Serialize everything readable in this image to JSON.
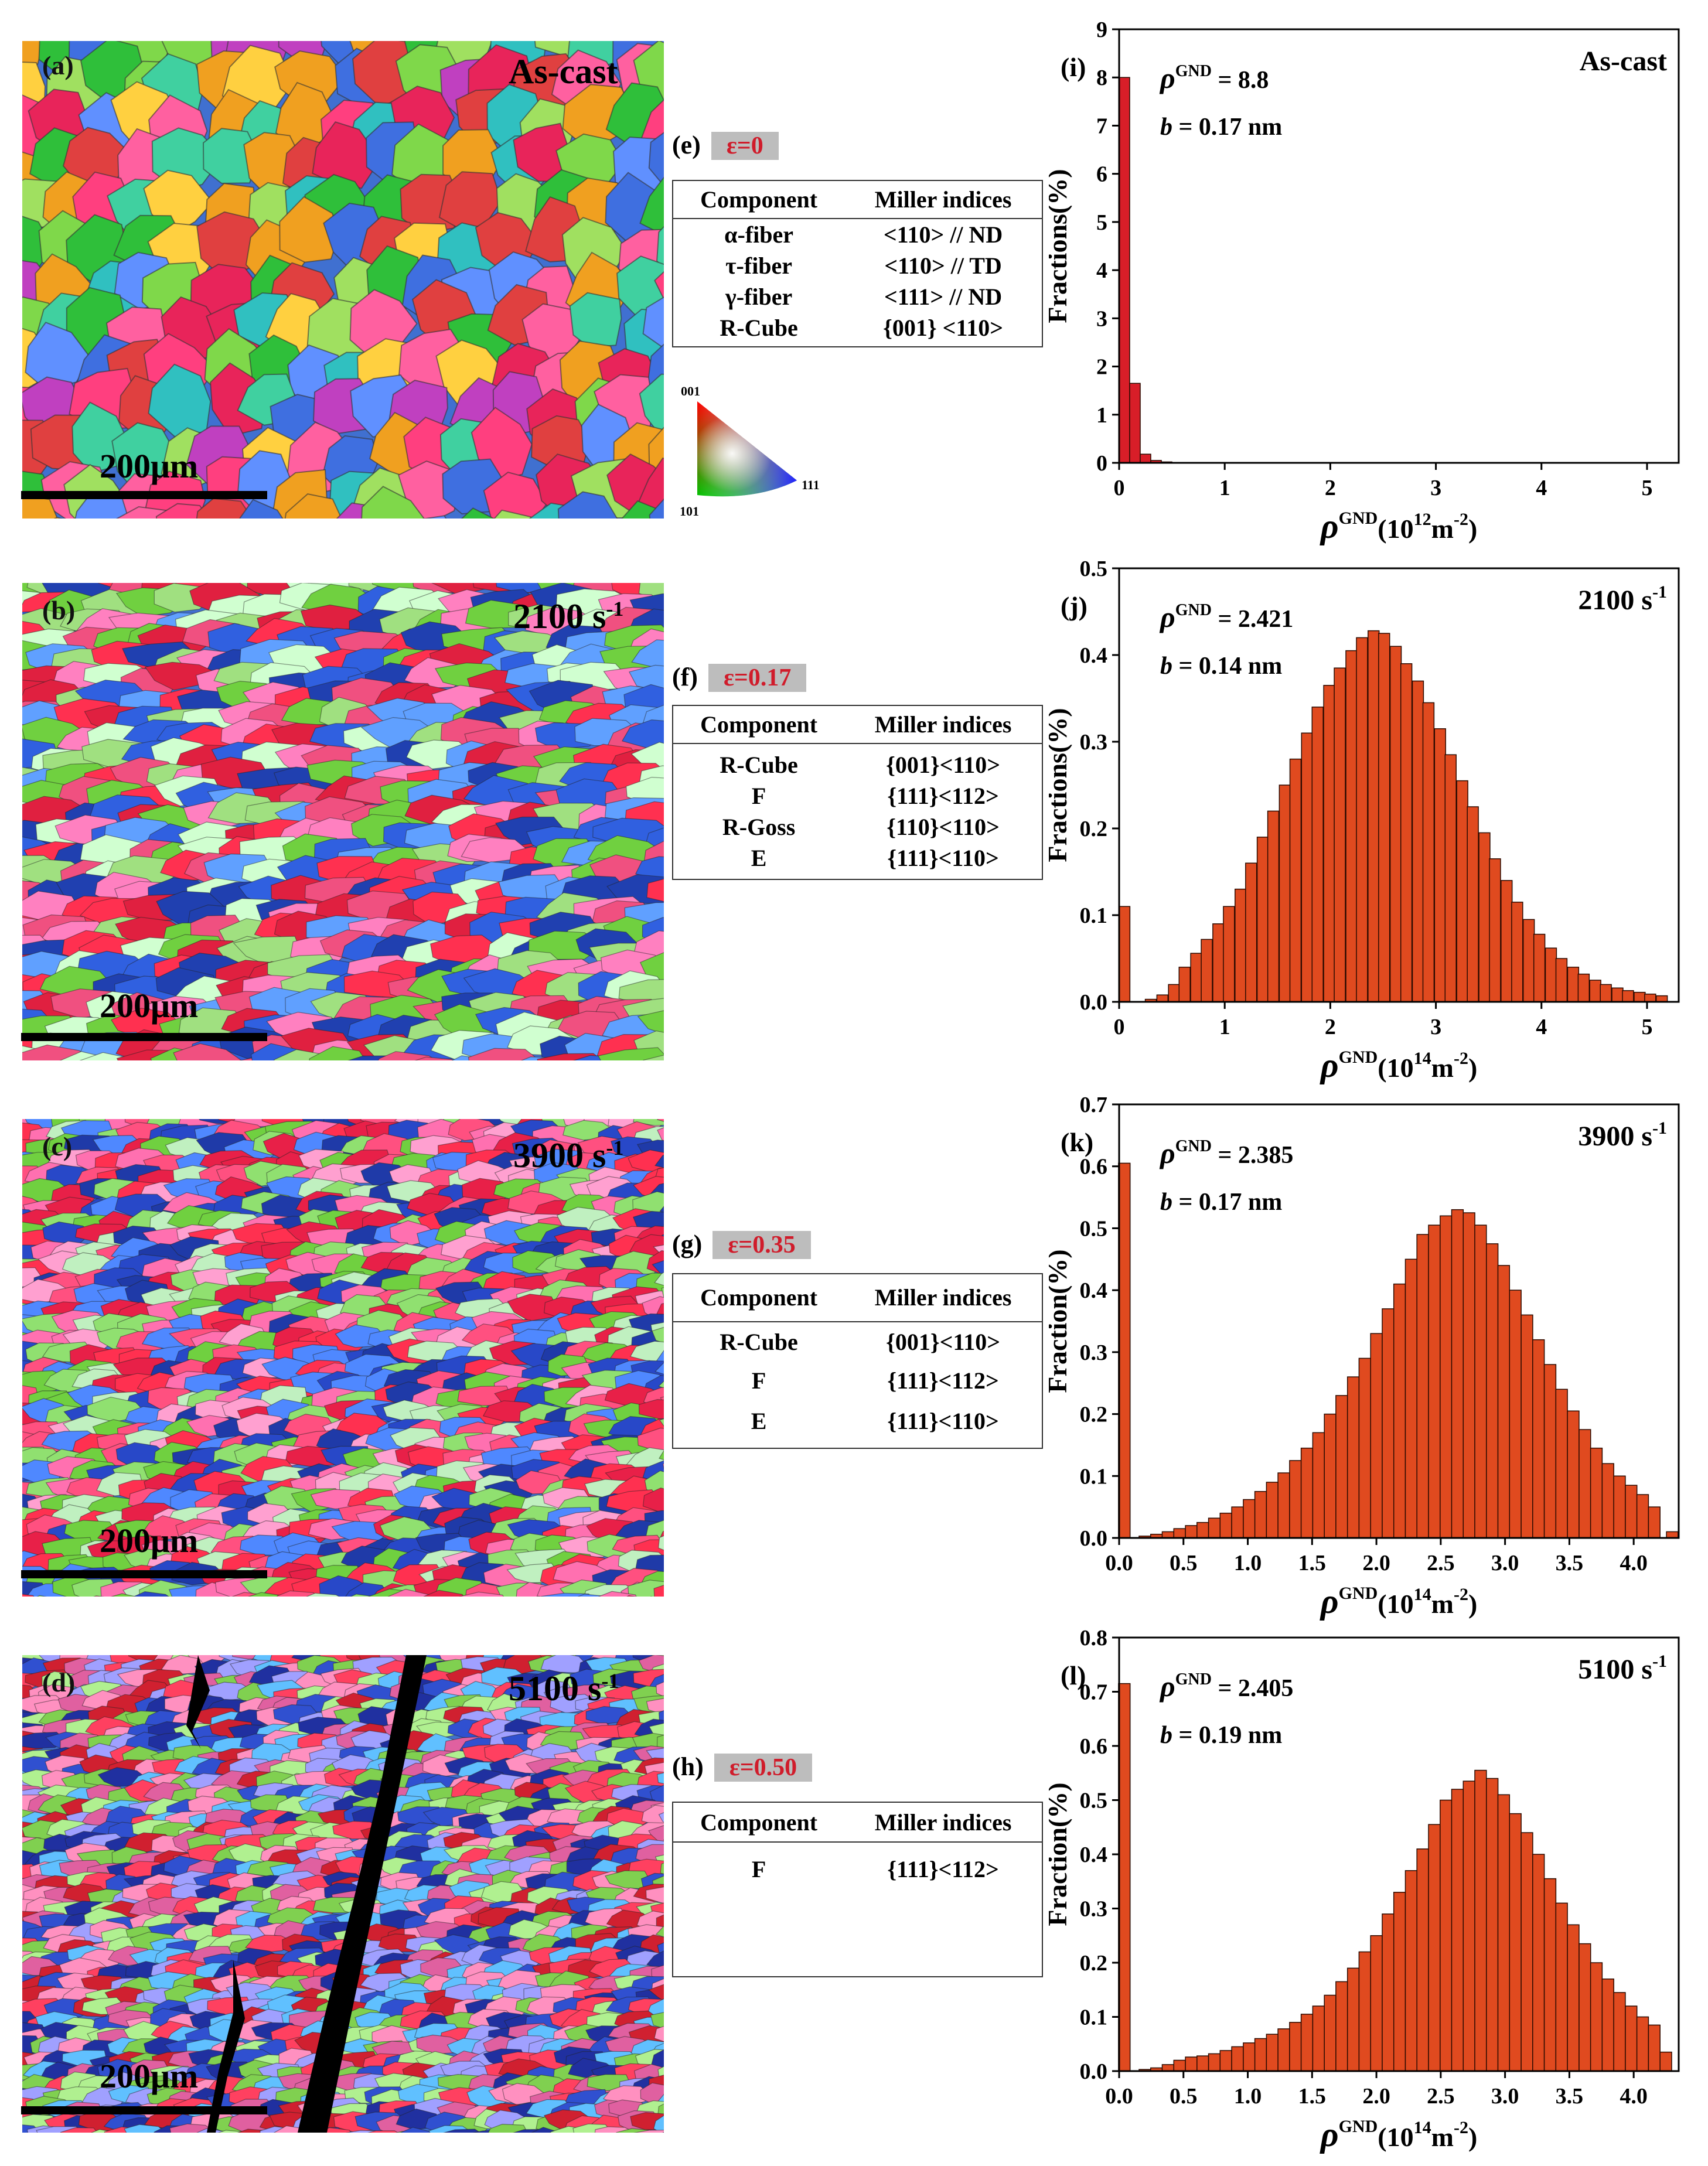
{
  "maps": [
    {
      "label": "(a)",
      "rate": "As-cast",
      "scale": "200μm"
    },
    {
      "label": "(b)",
      "rate": "2100 s-1",
      "scale": "200μm"
    },
    {
      "label": "(c)",
      "rate": "3900 s-1",
      "scale": "200μm"
    },
    {
      "label": "(d)",
      "rate": "5100 s-1",
      "scale": "200μm"
    }
  ],
  "ipf_key": {
    "corner_001": "001",
    "corner_101": "101",
    "corner_111": "111"
  },
  "tables": [
    {
      "label": "(e)",
      "strain": "ε=0",
      "headers": [
        "Component",
        "Miller indices"
      ],
      "rows": [
        [
          "α-fiber",
          "<110> // ND"
        ],
        [
          "τ-fiber",
          "<110> // TD"
        ],
        [
          "γ-fiber",
          "<111> // ND"
        ],
        [
          "R-Cube",
          "{001} <110>"
        ]
      ]
    },
    {
      "label": "(f)",
      "strain": "ε=0.17",
      "headers": [
        "Component",
        "Miller indices"
      ],
      "rows": [
        [
          "R-Cube",
          "{001}<110>"
        ],
        [
          "F",
          "{111}<112>"
        ],
        [
          "R-Goss",
          "{110}<110>"
        ],
        [
          "E",
          "{111}<110>"
        ]
      ]
    },
    {
      "label": "(g)",
      "strain": "ε=0.35",
      "headers": [
        "Component",
        "Miller indices"
      ],
      "rows": [
        [
          "R-Cube",
          "{001}<110>"
        ],
        [
          "F",
          "{111}<112>"
        ],
        [
          "E",
          "{111}<110>"
        ]
      ]
    },
    {
      "label": "(h)",
      "strain": "ε=0.50",
      "headers": [
        "Component",
        "Miller indices"
      ],
      "rows": [
        [
          "F",
          "{111}<112>"
        ]
      ]
    }
  ],
  "colors": {
    "bar_fill": "#e04a1f",
    "bar_fill_i": "#d81e28",
    "strain_text": "#d01c2b",
    "strain_bg": "#bdbdbd"
  },
  "chart_data": [
    {
      "type": "bar",
      "label": "(i)",
      "title": "As-cast",
      "ylabel": "Fractions(%)",
      "xlabel": "ρGND(1012m-2)",
      "annot_rho": "ρGND = 8.8",
      "annot_b": "b = 0.17 nm",
      "xlim": [
        0,
        5.3
      ],
      "ylim": [
        0,
        9
      ],
      "xticks": [
        0,
        1,
        2,
        3,
        4,
        5
      ],
      "xtick_labels": [
        "0",
        "1",
        "2",
        "3",
        "4",
        "5"
      ],
      "yticks": [
        0,
        1,
        2,
        3,
        4,
        5,
        6,
        7,
        8,
        9
      ],
      "ytick_labels": [
        "0",
        "1",
        "2",
        "3",
        "4",
        "5",
        "6",
        "7",
        "8",
        "9"
      ],
      "bin_width": 0.1,
      "x": [
        0.05,
        0.15,
        0.25,
        0.35,
        0.45
      ],
      "values": [
        8.0,
        1.65,
        0.18,
        0.05,
        0.02
      ]
    },
    {
      "type": "bar",
      "label": "(j)",
      "title": "2100 s-1",
      "ylabel": "Fractions(%)",
      "xlabel": "ρGND(1014m-2)",
      "annot_rho": "ρGND = 2.421",
      "annot_b": "b = 0.14 nm",
      "xlim": [
        0,
        5.3
      ],
      "ylim": [
        0,
        0.5
      ],
      "xticks": [
        0,
        1,
        2,
        3,
        4,
        5
      ],
      "xtick_labels": [
        "0",
        "1",
        "2",
        "3",
        "4",
        "5"
      ],
      "yticks": [
        0,
        0.1,
        0.2,
        0.3,
        0.4,
        0.5
      ],
      "ytick_labels": [
        "0.0",
        "0.1",
        "0.2",
        "0.3",
        "0.4",
        "0.5"
      ],
      "bin_width": 0.105,
      "x": [
        0.05,
        0.3,
        0.41,
        0.52,
        0.62,
        0.73,
        0.83,
        0.94,
        1.04,
        1.15,
        1.25,
        1.36,
        1.46,
        1.57,
        1.67,
        1.78,
        1.88,
        1.99,
        2.09,
        2.2,
        2.3,
        2.41,
        2.51,
        2.62,
        2.72,
        2.83,
        2.93,
        3.04,
        3.14,
        3.25,
        3.35,
        3.46,
        3.56,
        3.67,
        3.77,
        3.88,
        3.98,
        4.09,
        4.19,
        4.3,
        4.4,
        4.51,
        4.61,
        4.72,
        4.82,
        4.93,
        5.03,
        5.14
      ],
      "values": [
        0.11,
        0.003,
        0.008,
        0.02,
        0.04,
        0.056,
        0.072,
        0.09,
        0.11,
        0.13,
        0.16,
        0.19,
        0.22,
        0.25,
        0.28,
        0.31,
        0.34,
        0.365,
        0.385,
        0.405,
        0.42,
        0.428,
        0.425,
        0.41,
        0.39,
        0.37,
        0.345,
        0.315,
        0.285,
        0.255,
        0.225,
        0.195,
        0.165,
        0.14,
        0.115,
        0.095,
        0.078,
        0.062,
        0.05,
        0.04,
        0.032,
        0.025,
        0.02,
        0.016,
        0.013,
        0.011,
        0.009,
        0.007
      ]
    },
    {
      "type": "bar",
      "label": "(k)",
      "title": "3900 s-1",
      "ylabel": "Fraction(%)",
      "xlabel": "ρGND(1014m-2)",
      "annot_rho": "ρGND = 2.385",
      "annot_b": "b = 0.17 nm",
      "xlim": [
        0,
        4.35
      ],
      "ylim": [
        0,
        0.7
      ],
      "xticks": [
        0,
        0.5,
        1,
        1.5,
        2,
        2.5,
        3,
        3.5,
        4
      ],
      "xtick_labels": [
        "0.0",
        "0.5",
        "1.0",
        "1.5",
        "2.0",
        "2.5",
        "3.0",
        "3.5",
        "4.0"
      ],
      "yticks": [
        0,
        0.1,
        0.2,
        0.3,
        0.4,
        0.5,
        0.6,
        0.7
      ],
      "ytick_labels": [
        "0.0",
        "0.1",
        "0.2",
        "0.3",
        "0.4",
        "0.5",
        "0.6",
        "0.7"
      ],
      "bin_width": 0.09,
      "x": [
        0.04,
        0.2,
        0.29,
        0.38,
        0.47,
        0.56,
        0.65,
        0.74,
        0.83,
        0.92,
        1.01,
        1.1,
        1.19,
        1.28,
        1.37,
        1.46,
        1.55,
        1.64,
        1.73,
        1.82,
        1.91,
        2.0,
        2.09,
        2.18,
        2.27,
        2.36,
        2.45,
        2.54,
        2.63,
        2.72,
        2.81,
        2.9,
        2.99,
        3.08,
        3.17,
        3.26,
        3.35,
        3.44,
        3.53,
        3.62,
        3.71,
        3.8,
        3.89,
        3.98,
        4.07,
        4.16,
        4.3
      ],
      "values": [
        0.605,
        0.003,
        0.006,
        0.01,
        0.015,
        0.02,
        0.025,
        0.032,
        0.04,
        0.05,
        0.062,
        0.075,
        0.09,
        0.105,
        0.125,
        0.145,
        0.17,
        0.2,
        0.23,
        0.26,
        0.29,
        0.33,
        0.37,
        0.41,
        0.45,
        0.49,
        0.505,
        0.52,
        0.53,
        0.525,
        0.505,
        0.475,
        0.44,
        0.4,
        0.36,
        0.32,
        0.28,
        0.24,
        0.205,
        0.175,
        0.145,
        0.12,
        0.1,
        0.085,
        0.07,
        0.05,
        0.01
      ]
    },
    {
      "type": "bar",
      "label": "(l)",
      "title": "5100 s-1",
      "ylabel": "Fraction(%)",
      "xlabel": "ρGND(1014m-2)",
      "annot_rho": "ρGND = 2.405",
      "annot_b": "b = 0.19 nm",
      "xlim": [
        0,
        4.35
      ],
      "ylim": [
        0,
        0.8
      ],
      "xticks": [
        0,
        0.5,
        1,
        1.5,
        2,
        2.5,
        3,
        3.5,
        4
      ],
      "xtick_labels": [
        "0.0",
        "0.5",
        "1.0",
        "1.5",
        "2.0",
        "2.5",
        "3.0",
        "3.5",
        "4.0"
      ],
      "yticks": [
        0,
        0.1,
        0.2,
        0.3,
        0.4,
        0.5,
        0.6,
        0.7,
        0.8
      ],
      "ytick_labels": [
        "0.0",
        "0.1",
        "0.2",
        "0.3",
        "0.4",
        "0.5",
        "0.6",
        "0.7",
        "0.8"
      ],
      "bin_width": 0.09,
      "x": [
        0.04,
        0.2,
        0.29,
        0.38,
        0.47,
        0.56,
        0.65,
        0.74,
        0.83,
        0.92,
        1.01,
        1.1,
        1.19,
        1.28,
        1.37,
        1.46,
        1.55,
        1.64,
        1.73,
        1.82,
        1.91,
        2.0,
        2.09,
        2.18,
        2.27,
        2.36,
        2.45,
        2.54,
        2.63,
        2.72,
        2.81,
        2.9,
        2.99,
        3.08,
        3.17,
        3.26,
        3.35,
        3.44,
        3.53,
        3.62,
        3.71,
        3.8,
        3.89,
        3.98,
        4.07,
        4.16,
        4.25
      ],
      "values": [
        0.715,
        0.003,
        0.006,
        0.012,
        0.02,
        0.026,
        0.028,
        0.032,
        0.038,
        0.045,
        0.052,
        0.06,
        0.068,
        0.078,
        0.09,
        0.105,
        0.12,
        0.14,
        0.165,
        0.19,
        0.22,
        0.25,
        0.29,
        0.33,
        0.37,
        0.41,
        0.455,
        0.5,
        0.52,
        0.535,
        0.555,
        0.54,
        0.51,
        0.475,
        0.44,
        0.4,
        0.355,
        0.31,
        0.27,
        0.235,
        0.2,
        0.17,
        0.145,
        0.12,
        0.1,
        0.085,
        0.035
      ]
    }
  ]
}
